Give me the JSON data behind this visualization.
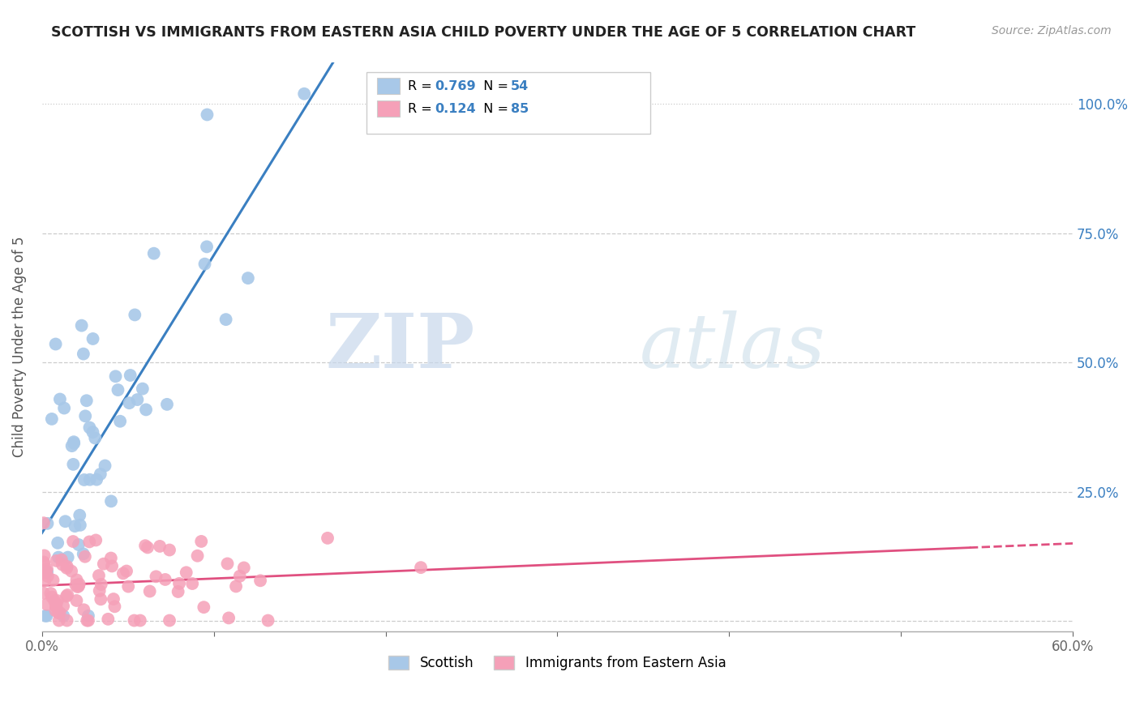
{
  "title": "SCOTTISH VS IMMIGRANTS FROM EASTERN ASIA CHILD POVERTY UNDER THE AGE OF 5 CORRELATION CHART",
  "source": "Source: ZipAtlas.com",
  "ylabel": "Child Poverty Under the Age of 5",
  "ytick_vals": [
    0.0,
    0.25,
    0.5,
    0.75,
    1.0
  ],
  "ytick_labels": [
    "",
    "25.0%",
    "50.0%",
    "75.0%",
    "100.0%"
  ],
  "xrange": [
    0.0,
    0.6
  ],
  "yrange": [
    -0.02,
    1.08
  ],
  "series1_label": "Scottish",
  "series1_R": 0.769,
  "series1_N": 54,
  "series1_color": "#a8c8e8",
  "series1_line_color": "#3a7fc1",
  "series2_label": "Immigrants from Eastern Asia",
  "series2_R": 0.124,
  "series2_N": 85,
  "series2_color": "#f5a0b8",
  "series2_line_color": "#e05080",
  "watermark_zip": "ZIP",
  "watermark_atlas": "atlas",
  "legend_text_color": "#3a7fc1",
  "background_color": "#ffffff",
  "grid_color": "#cccccc",
  "axis_color": "#aaaaaa",
  "title_color": "#222222",
  "ylabel_color": "#555555",
  "xtick_color": "#666666",
  "legend_border_color": "#cccccc"
}
